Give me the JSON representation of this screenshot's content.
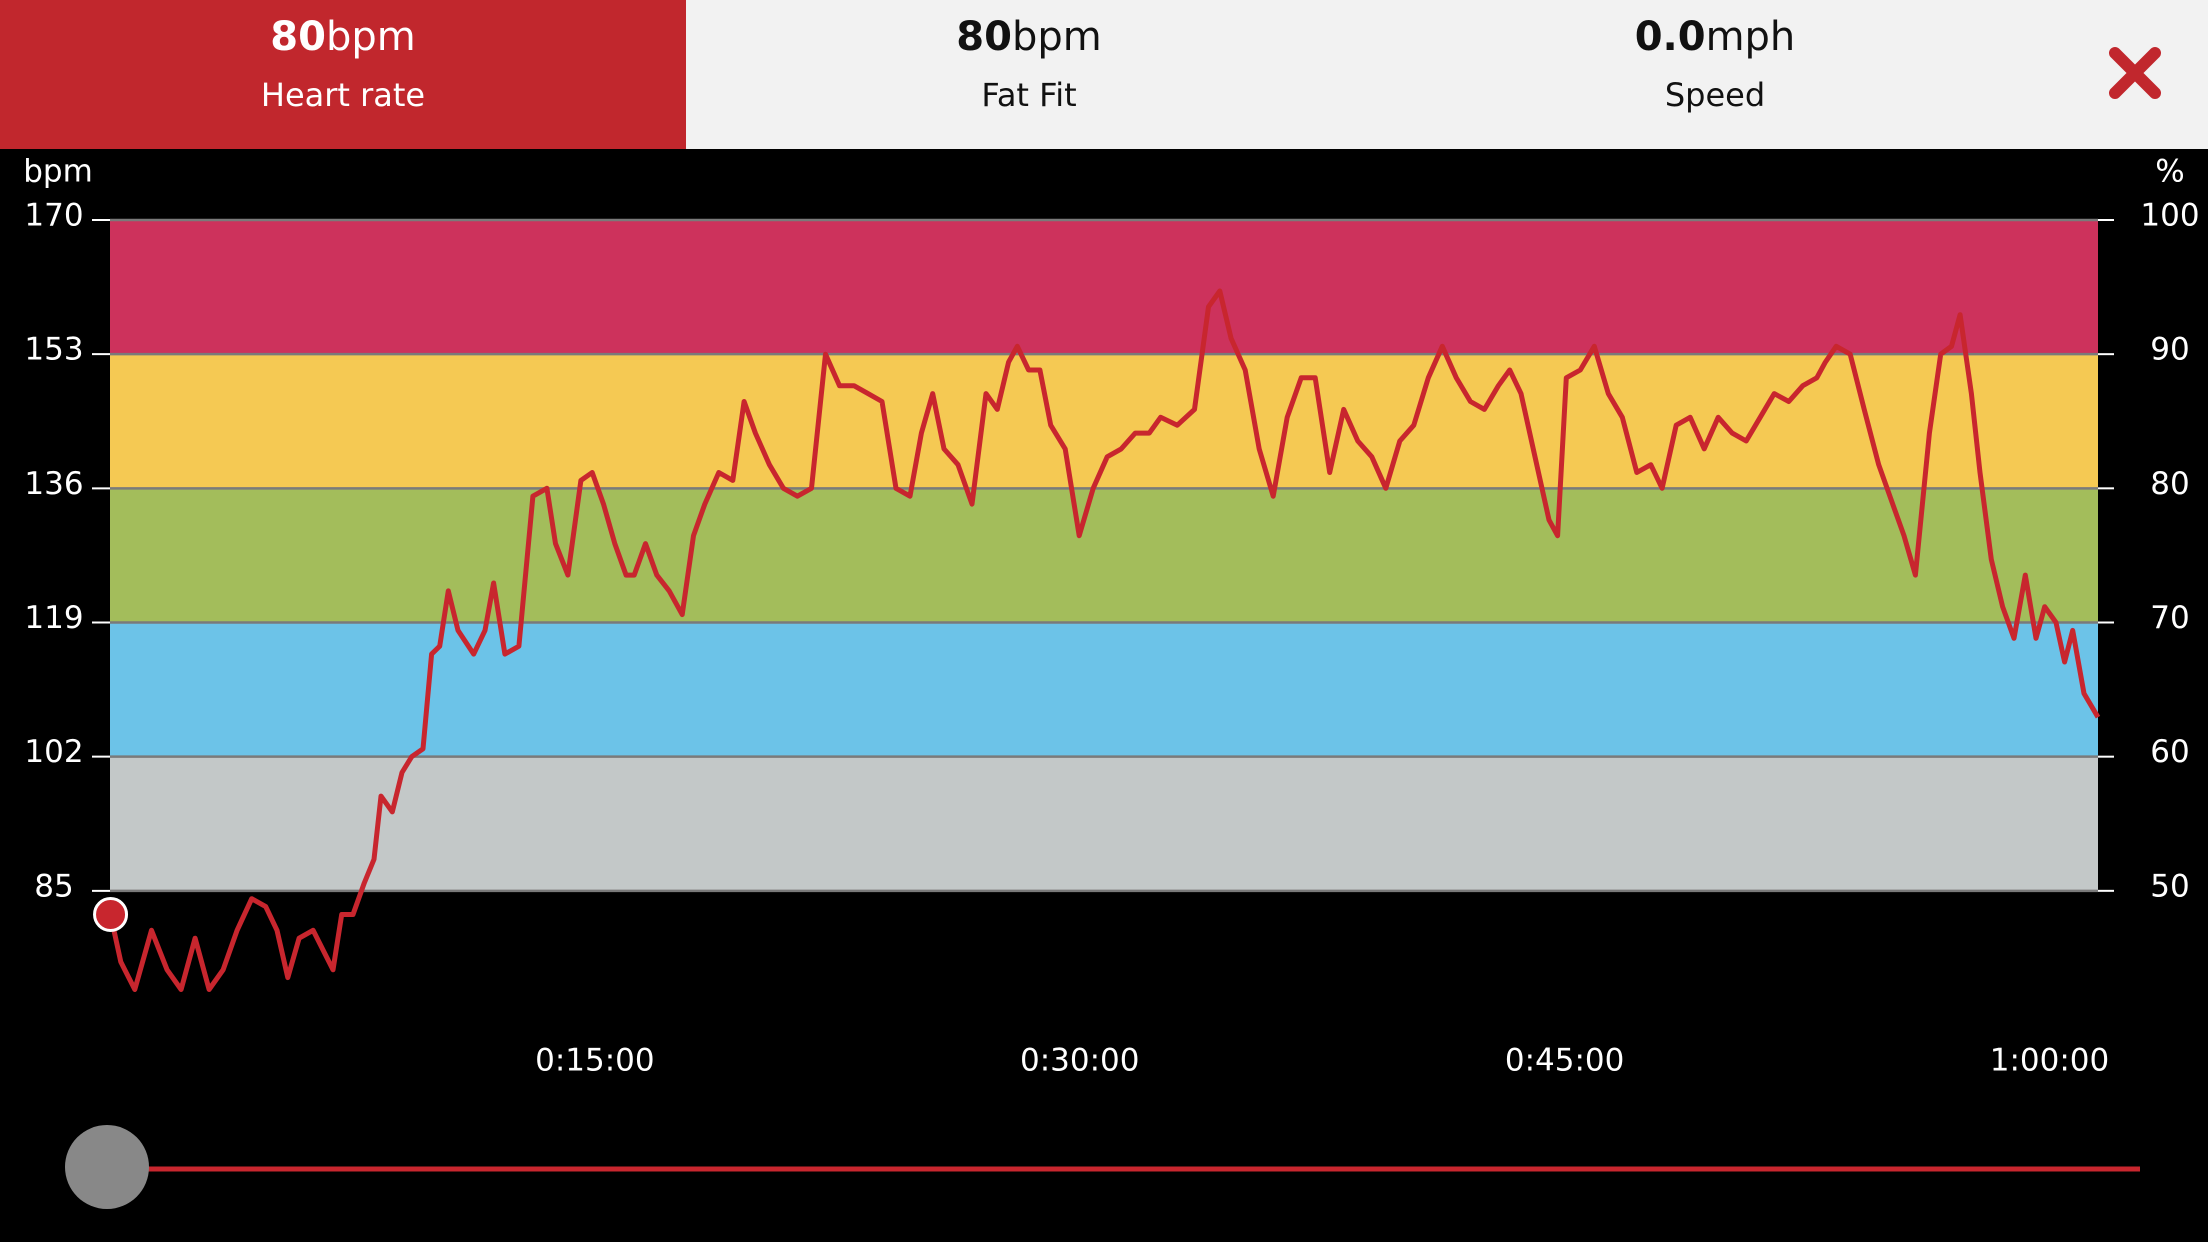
{
  "header": {
    "tabs": [
      {
        "value": "80",
        "unit": "bpm",
        "label": "Heart rate"
      },
      {
        "value": "80",
        "unit": "bpm",
        "label": "Fat Fit"
      },
      {
        "value": "0.0",
        "unit": "mph",
        "label": "Speed"
      }
    ]
  },
  "chart_data": {
    "type": "line",
    "ylabel": "bpm",
    "y2label": "%",
    "color": "#c8262e",
    "zone_colors": [
      "#c3c8c8",
      "#6cc3e8",
      "#a3bd5b",
      "#f5c953",
      "#cd325c"
    ],
    "xlim": [
      0,
      3690
    ],
    "ylim": [
      68,
      170
    ],
    "y2lim": [
      40,
      100
    ],
    "xticks": [
      {
        "value": 900,
        "label": "0:15:00"
      },
      {
        "value": 1800,
        "label": "0:30:00"
      },
      {
        "value": 2700,
        "label": "0:45:00"
      },
      {
        "value": 3600,
        "label": "1:00:00"
      }
    ],
    "yticks": [
      85,
      102,
      119,
      136,
      153,
      170
    ],
    "y2ticks": [
      50,
      60,
      70,
      80,
      90,
      100
    ],
    "grid": true,
    "x": [
      1,
      20,
      46,
      77,
      106,
      132,
      158,
      184,
      210,
      236,
      263,
      289,
      310,
      330,
      351,
      377,
      414,
      430,
      451,
      472,
      490,
      503,
      524,
      542,
      560,
      581,
      597,
      612,
      628,
      646,
      675,
      696,
      712,
      733,
      759,
      785,
      811,
      827,
      850,
      874,
      895,
      916,
      937,
      958,
      973,
      994,
      1015,
      1038,
      1062,
      1083,
      1104,
      1130,
      1156,
      1177,
      1198,
      1224,
      1250,
      1276,
      1302,
      1328,
      1354,
      1381,
      1407,
      1433,
      1459,
      1485,
      1506,
      1527,
      1548,
      1574,
      1600,
      1626,
      1647,
      1668,
      1684,
      1705,
      1726,
      1746,
      1773,
      1799,
      1825,
      1851,
      1877,
      1903,
      1929,
      1950,
      1981,
      2013,
      2039,
      2060,
      2081,
      2107,
      2133,
      2159,
      2185,
      2211,
      2237,
      2264,
      2290,
      2316,
      2342,
      2368,
      2394,
      2420,
      2447,
      2473,
      2499,
      2525,
      2551,
      2577,
      2598,
      2619,
      2645,
      2671,
      2687,
      2703,
      2729,
      2755,
      2781,
      2807,
      2834,
      2860,
      2881,
      2907,
      2933,
      2959,
      2985,
      3011,
      3037,
      3063,
      3089,
      3116,
      3142,
      3168,
      3184,
      3204,
      3230,
      3256,
      3283,
      3309,
      3330,
      3351,
      3377,
      3398,
      3418,
      3434,
      3455,
      3471,
      3492,
      3513,
      3534,
      3555,
      3575,
      3591,
      3612,
      3628,
      3643,
      3664,
      3690
    ],
    "values": [
      82,
      76,
      72.5,
      80,
      75,
      72.5,
      79,
      72.5,
      75,
      80,
      84,
      83,
      80,
      74,
      79,
      80,
      75,
      82,
      82,
      86,
      89,
      97,
      95,
      100,
      102,
      103,
      115,
      116,
      123,
      118,
      115,
      118,
      124,
      115,
      116,
      135,
      136,
      129,
      125,
      137,
      138,
      134,
      129,
      125,
      125,
      129,
      125,
      123,
      120,
      130,
      134,
      138,
      137,
      147,
      143,
      139,
      136,
      135,
      136,
      153,
      149,
      149,
      148,
      147,
      136,
      135,
      143,
      148,
      141,
      139,
      134,
      148,
      146,
      152,
      154,
      151,
      151,
      144,
      141,
      130,
      136,
      140,
      141,
      143,
      143,
      145,
      144,
      146,
      159,
      161,
      155,
      151,
      141,
      135,
      145,
      150,
      150,
      138,
      146,
      142,
      140,
      136,
      142,
      144,
      150,
      154,
      150,
      147,
      146,
      149,
      151,
      148,
      140,
      132,
      130,
      150,
      151,
      154,
      148,
      145,
      138,
      139,
      136,
      144,
      145,
      141,
      145,
      143,
      142,
      145,
      148,
      147,
      149,
      150,
      152,
      154,
      153,
      146,
      139,
      134,
      130,
      125,
      143,
      153,
      154,
      158,
      148,
      138,
      127,
      121,
      117,
      125,
      117,
      121,
      119,
      114,
      118,
      110,
      107
    ]
  }
}
